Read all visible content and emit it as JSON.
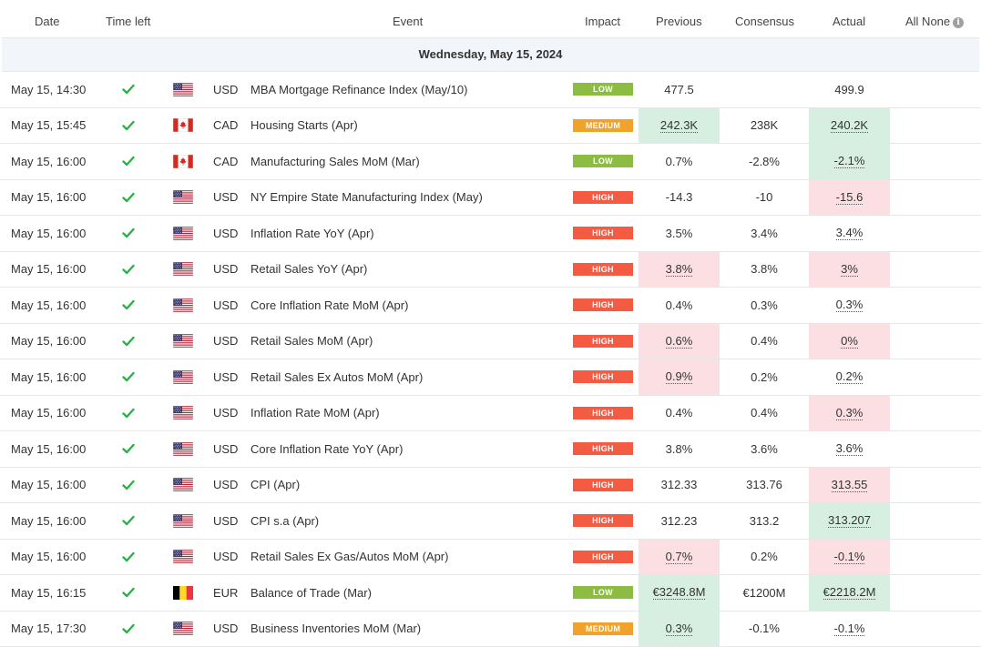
{
  "header": {
    "date": "Date",
    "time_left": "Time left",
    "event": "Event",
    "impact": "Impact",
    "previous": "Previous",
    "consensus": "Consensus",
    "actual": "Actual",
    "all_none": "All None"
  },
  "day_label": "Wednesday, May 15, 2024",
  "colors": {
    "low": "#8cbd42",
    "medium": "#f0a22b",
    "high": "#f35b43",
    "check": "#2bb04a",
    "better": "#d7efe1",
    "worse": "#fbdfe3"
  },
  "rows": [
    {
      "date": "May 15, 14:30",
      "flag": "us",
      "currency": "USD",
      "event": "MBA Mortgage Refinance Index (May/10)",
      "impact": "LOW",
      "previous": "477.5",
      "previous_style": "",
      "consensus": "",
      "actual": "499.9",
      "actual_style": ""
    },
    {
      "date": "May 15, 15:45",
      "flag": "ca",
      "currency": "CAD",
      "event": "Housing Starts (Apr)",
      "impact": "MEDIUM",
      "previous": "242.3K",
      "previous_style": "green",
      "consensus": "238K",
      "actual": "240.2K",
      "actual_style": "green"
    },
    {
      "date": "May 15, 16:00",
      "flag": "ca",
      "currency": "CAD",
      "event": "Manufacturing Sales MoM (Mar)",
      "impact": "LOW",
      "previous": "0.7%",
      "previous_style": "",
      "consensus": "-2.8%",
      "actual": "-2.1%",
      "actual_style": "green"
    },
    {
      "date": "May 15, 16:00",
      "flag": "us",
      "currency": "USD",
      "event": "NY Empire State Manufacturing Index (May)",
      "impact": "HIGH",
      "previous": "-14.3",
      "previous_style": "",
      "consensus": "-10",
      "actual": "-15.6",
      "actual_style": "red"
    },
    {
      "date": "May 15, 16:00",
      "flag": "us",
      "currency": "USD",
      "event": "Inflation Rate YoY (Apr)",
      "impact": "HIGH",
      "previous": "3.5%",
      "previous_style": "",
      "consensus": "3.4%",
      "actual": "3.4%",
      "actual_style": "plain"
    },
    {
      "date": "May 15, 16:00",
      "flag": "us",
      "currency": "USD",
      "event": "Retail Sales YoY (Apr)",
      "impact": "HIGH",
      "previous": "3.8%",
      "previous_style": "red",
      "consensus": "3.8%",
      "actual": "3%",
      "actual_style": "red"
    },
    {
      "date": "May 15, 16:00",
      "flag": "us",
      "currency": "USD",
      "event": "Core Inflation Rate MoM (Apr)",
      "impact": "HIGH",
      "previous": "0.4%",
      "previous_style": "",
      "consensus": "0.3%",
      "actual": "0.3%",
      "actual_style": "plain"
    },
    {
      "date": "May 15, 16:00",
      "flag": "us",
      "currency": "USD",
      "event": "Retail Sales MoM (Apr)",
      "impact": "HIGH",
      "previous": "0.6%",
      "previous_style": "red",
      "consensus": "0.4%",
      "actual": "0%",
      "actual_style": "red"
    },
    {
      "date": "May 15, 16:00",
      "flag": "us",
      "currency": "USD",
      "event": "Retail Sales Ex Autos MoM (Apr)",
      "impact": "HIGH",
      "previous": "0.9%",
      "previous_style": "red",
      "consensus": "0.2%",
      "actual": "0.2%",
      "actual_style": "plain"
    },
    {
      "date": "May 15, 16:00",
      "flag": "us",
      "currency": "USD",
      "event": "Inflation Rate MoM (Apr)",
      "impact": "HIGH",
      "previous": "0.4%",
      "previous_style": "",
      "consensus": "0.4%",
      "actual": "0.3%",
      "actual_style": "red"
    },
    {
      "date": "May 15, 16:00",
      "flag": "us",
      "currency": "USD",
      "event": "Core Inflation Rate YoY (Apr)",
      "impact": "HIGH",
      "previous": "3.8%",
      "previous_style": "",
      "consensus": "3.6%",
      "actual": "3.6%",
      "actual_style": "plain"
    },
    {
      "date": "May 15, 16:00",
      "flag": "us",
      "currency": "USD",
      "event": "CPI (Apr)",
      "impact": "HIGH",
      "previous": "312.33",
      "previous_style": "",
      "consensus": "313.76",
      "actual": "313.55",
      "actual_style": "red"
    },
    {
      "date": "May 15, 16:00",
      "flag": "us",
      "currency": "USD",
      "event": "CPI s.a (Apr)",
      "impact": "HIGH",
      "previous": "312.23",
      "previous_style": "",
      "consensus": "313.2",
      "actual": "313.207",
      "actual_style": "green"
    },
    {
      "date": "May 15, 16:00",
      "flag": "us",
      "currency": "USD",
      "event": "Retail Sales Ex Gas/Autos MoM (Apr)",
      "impact": "HIGH",
      "previous": "0.7%",
      "previous_style": "red",
      "consensus": "0.2%",
      "actual": "-0.1%",
      "actual_style": "red"
    },
    {
      "date": "May 15, 16:15",
      "flag": "be",
      "currency": "EUR",
      "event": "Balance of Trade (Mar)",
      "impact": "LOW",
      "previous": "€3248.8M",
      "previous_style": "green",
      "consensus": "€1200M",
      "actual": "€2218.2M",
      "actual_style": "green"
    },
    {
      "date": "May 15, 17:30",
      "flag": "us",
      "currency": "USD",
      "event": "Business Inventories MoM (Mar)",
      "impact": "MEDIUM",
      "previous": "0.3%",
      "previous_style": "green",
      "consensus": "-0.1%",
      "actual": "-0.1%",
      "actual_style": "plain"
    }
  ]
}
